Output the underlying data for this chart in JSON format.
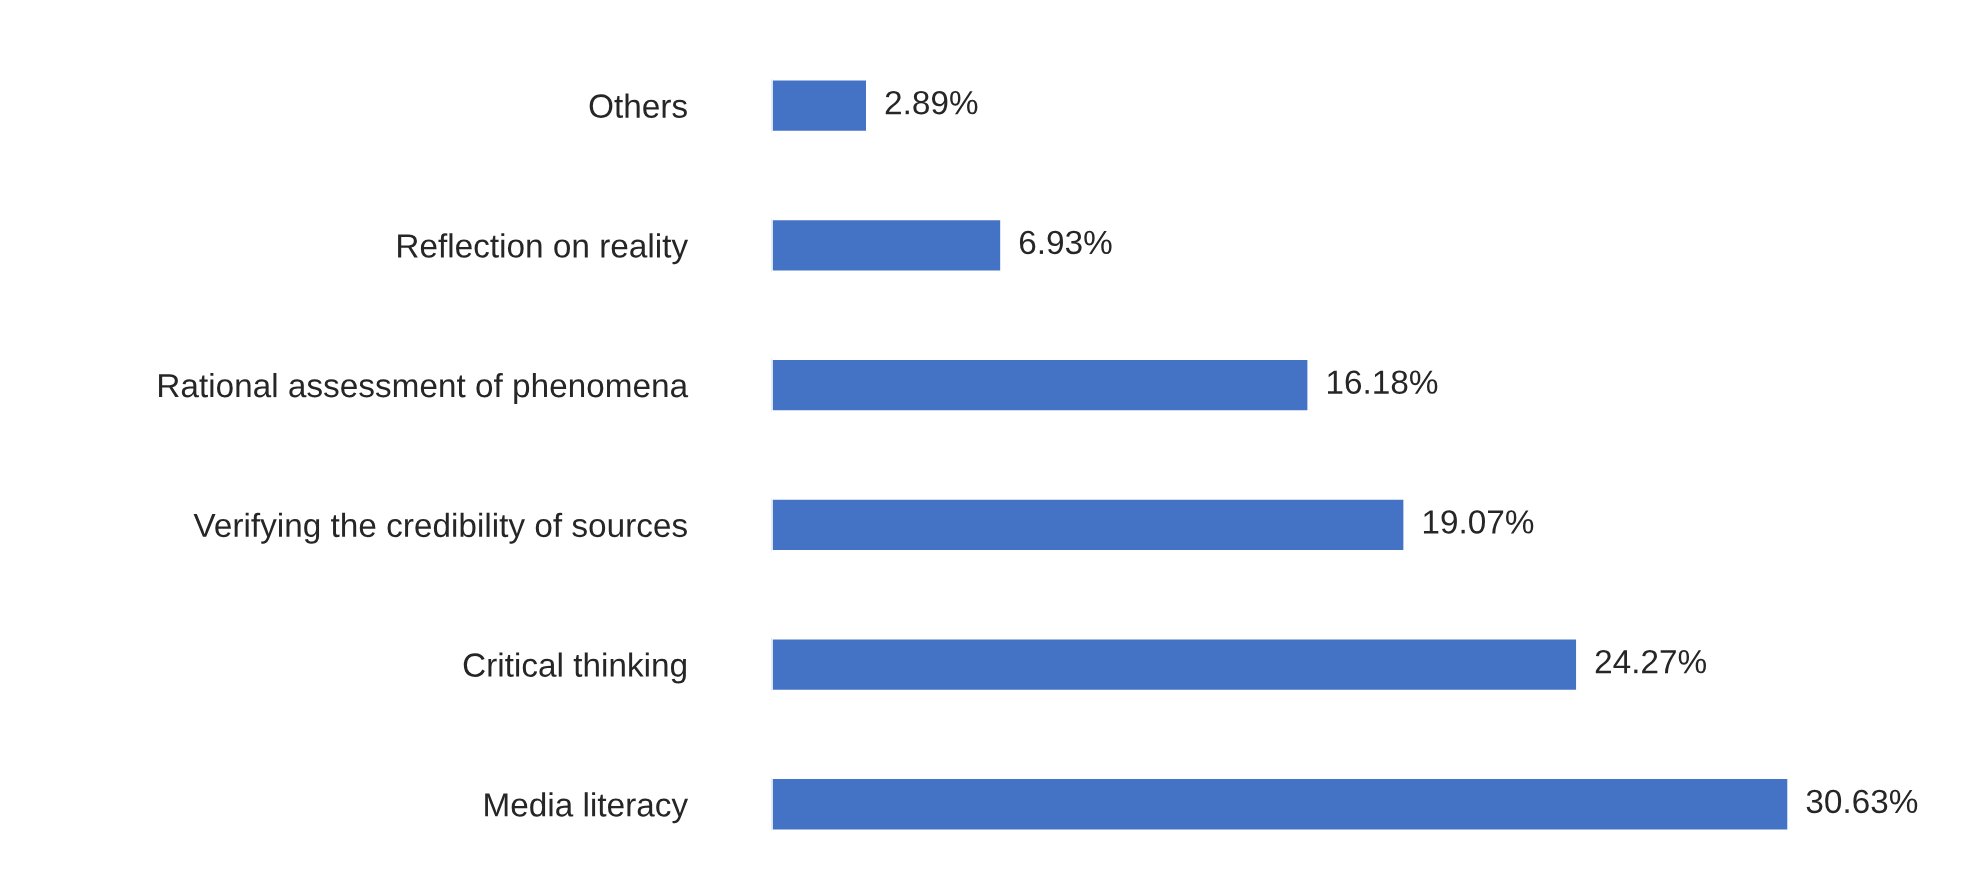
{
  "chart_data": {
    "type": "bar",
    "orientation": "horizontal",
    "categories": [
      "Others",
      "Reflection on reality",
      "Rational assessment of phenomena",
      "Verifying the credibility of sources",
      "Critical thinking",
      "Media literacy"
    ],
    "values": [
      2.89,
      6.93,
      16.18,
      19.07,
      24.27,
      30.63
    ],
    "value_labels": [
      "2.89%",
      "6.93%",
      "16.18%",
      "19.07%",
      "24.27%",
      "30.63%"
    ],
    "color": "#4472c4"
  }
}
